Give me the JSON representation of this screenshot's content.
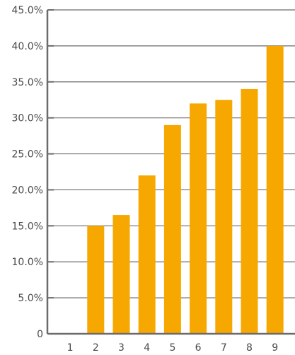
{
  "chart_data": {
    "type": "bar",
    "categories": [
      "1",
      "2",
      "3",
      "4",
      "5",
      "6",
      "7",
      "8",
      "9"
    ],
    "values": [
      0,
      15.0,
      16.5,
      22.0,
      29.0,
      32.0,
      32.5,
      34.0,
      40.0
    ],
    "ylim": [
      0,
      45
    ],
    "y_ticks": [
      "0",
      "5.0%",
      "10.0%",
      "15.0%",
      "20.0%",
      "25.0%",
      "30.0%",
      "35.0%",
      "40.0%",
      "45.0%"
    ],
    "y_tick_values": [
      0,
      5,
      10,
      15,
      20,
      25,
      30,
      35,
      40,
      45
    ],
    "grid": true,
    "legend": "none",
    "title": "",
    "xlabel": "",
    "ylabel": ""
  },
  "colors": {
    "bar": "#F7A800",
    "grid": "#6b6b6b",
    "axis": "#6b6b6b",
    "tick_text": "#4a4a4a"
  }
}
